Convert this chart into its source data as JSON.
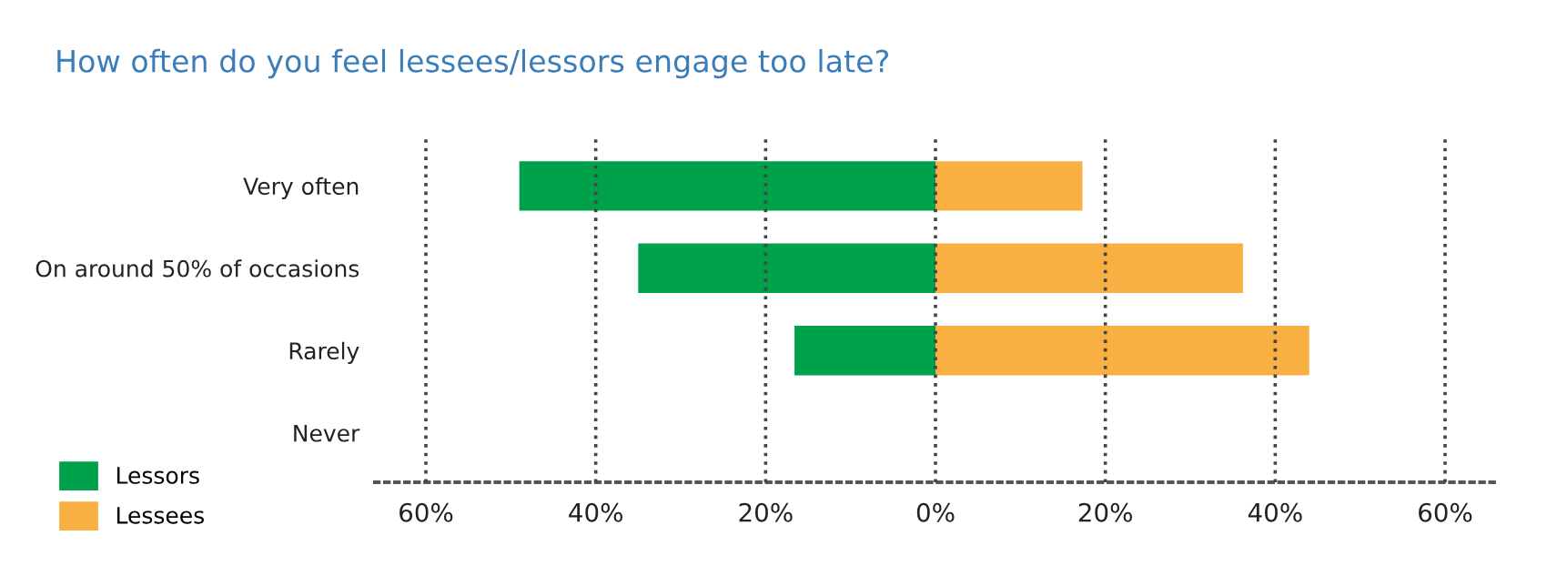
{
  "chart_data": {
    "type": "bar",
    "orientation": "horizontal",
    "stacked": true,
    "title": "How often do you feel lessees/lessors engage too late?",
    "categories": [
      "Very often",
      "On around 50% of occasions",
      "Rarely",
      "Never"
    ],
    "series": [
      {
        "name": "Lessors",
        "color": "#00a14b",
        "values": [
          -49,
          -35,
          -16.6,
          0
        ]
      },
      {
        "name": "Lessees",
        "color": "#f9b042",
        "values": [
          17.3,
          36.2,
          44,
          0
        ]
      }
    ],
    "xlim": [
      -66,
      66
    ],
    "xticks": [
      {
        "value": -60,
        "label": "60%"
      },
      {
        "value": -40,
        "label": "40%"
      },
      {
        "value": -20,
        "label": "20%"
      },
      {
        "value": 0,
        "label": "0%"
      },
      {
        "value": 20,
        "label": "20%"
      },
      {
        "value": 40,
        "label": "40%"
      },
      {
        "value": 60,
        "label": "60%"
      }
    ],
    "grid": "x",
    "legend": "bottom left"
  }
}
